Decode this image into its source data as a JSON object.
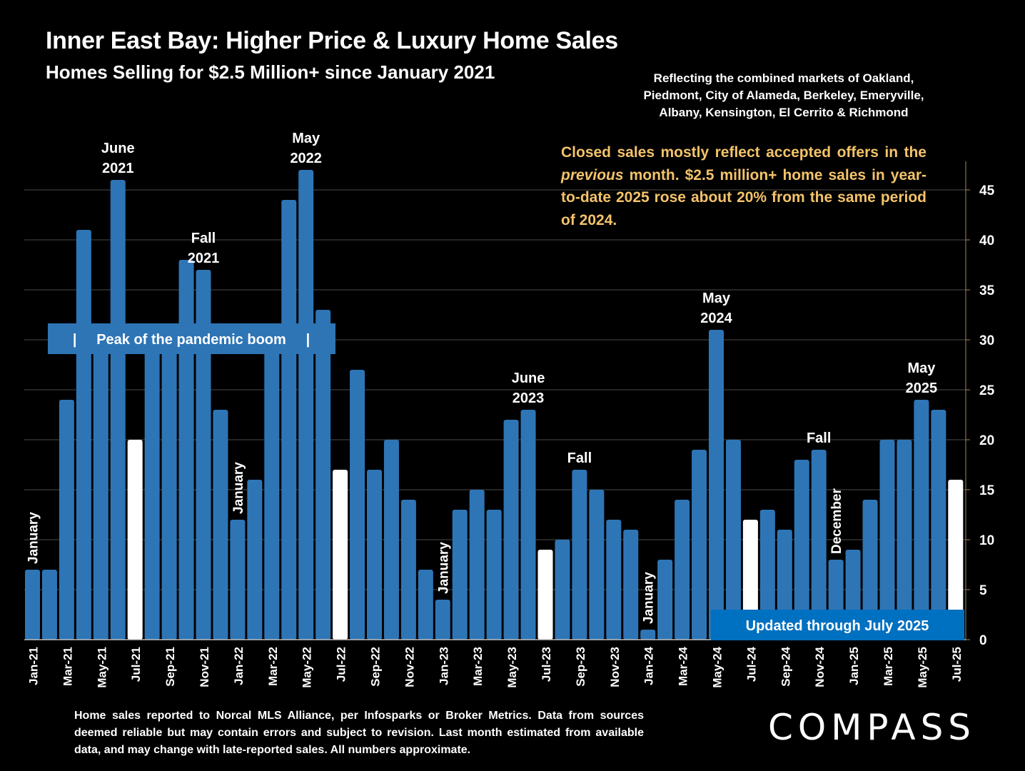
{
  "header": {
    "title": "Inner East Bay: Higher Price & Luxury Home Sales",
    "subtitle": "Homes Selling for $2.5 Million+ since January 2021",
    "region": "Reflecting the combined markets of Oakland, Piedmont, City of Alameda, Berkeley, Emeryville, Albany, Kensington, El Cerrito & Richmond"
  },
  "callout": {
    "part1": "Closed sales mostly reflect accepted offers in the ",
    "emphasis": "previous",
    "part2": " month. $2.5 million+ home sales in year-to-date 2025 rose about 20% from the same period of 2024."
  },
  "footnote": "Home sales reported to Norcal MLS Alliance, per Infosparks or Broker Metrics. Data from sources deemed reliable but may contain errors and subject to revision.  Last month estimated from available data, and may change with late-reported sales. All numbers approximate.",
  "logo": "COMPASS",
  "colors": {
    "bar": "#2e75b6",
    "highlight": "#ffffff",
    "background": "#000000",
    "callout": "#f4c36a",
    "badge": "#0070c0"
  },
  "chart_data": {
    "type": "bar",
    "categories": [
      "Jan-21",
      "Feb-21",
      "Mar-21",
      "Apr-21",
      "May-21",
      "Jun-21",
      "Jul-21",
      "Aug-21",
      "Sep-21",
      "Oct-21",
      "Nov-21",
      "Dec-21",
      "Jan-22",
      "Feb-22",
      "Mar-22",
      "Apr-22",
      "May-22",
      "Jun-22",
      "Jul-22",
      "Aug-22",
      "Sep-22",
      "Oct-22",
      "Nov-22",
      "Dec-22",
      "Jan-23",
      "Feb-23",
      "Mar-23",
      "Apr-23",
      "May-23",
      "Jun-23",
      "Jul-23",
      "Aug-23",
      "Sep-23",
      "Oct-23",
      "Nov-23",
      "Dec-23",
      "Jan-24",
      "Feb-24",
      "Mar-24",
      "Apr-24",
      "May-24",
      "Jun-24",
      "Jul-24",
      "Aug-24",
      "Sep-24",
      "Oct-24",
      "Nov-24",
      "Dec-24",
      "Jan-25",
      "Feb-25",
      "Mar-25",
      "Apr-25",
      "May-25",
      "Jun-25",
      "Jul-25"
    ],
    "values": [
      7,
      7,
      24,
      41,
      30,
      46,
      20,
      30,
      30,
      38,
      37,
      23,
      12,
      16,
      30,
      44,
      47,
      33,
      17,
      27,
      17,
      20,
      14,
      7,
      4,
      13,
      15,
      13,
      22,
      23,
      9,
      10,
      17,
      15,
      12,
      11,
      1,
      8,
      14,
      19,
      31,
      20,
      12,
      13,
      11,
      18,
      19,
      8,
      9,
      14,
      20,
      20,
      24,
      23,
      16
    ],
    "highlight_indices": [
      6,
      18,
      30,
      42,
      54
    ],
    "x_tick_labels": [
      "Jan-21",
      "Mar-21",
      "May-21",
      "Jul-21",
      "Sep-21",
      "Nov-21",
      "Jan-22",
      "Mar-22",
      "May-22",
      "Jul-22",
      "Sep-22",
      "Nov-22",
      "Jan-23",
      "Mar-23",
      "May-23",
      "Jul-23",
      "Sep-23",
      "Nov-23",
      "Jan-24",
      "Mar-24",
      "May-24",
      "Jul-24",
      "Sep-24",
      "Nov-24",
      "Jan-25",
      "Mar-25",
      "May-25",
      "Jul-25"
    ],
    "y_ticks": [
      0,
      5,
      10,
      15,
      20,
      25,
      30,
      35,
      40,
      45
    ],
    "ylim": [
      0,
      48
    ],
    "y_axis_side": "right",
    "grid": true,
    "annotations": [
      {
        "index": 0,
        "lines": [
          "January"
        ],
        "rotated": true
      },
      {
        "index": 5,
        "lines": [
          "June",
          "2021"
        ]
      },
      {
        "index": 10,
        "lines": [
          "Fall",
          "2021"
        ]
      },
      {
        "index": 12,
        "lines": [
          "January"
        ],
        "rotated": true
      },
      {
        "index": 16,
        "lines": [
          "May",
          "2022"
        ]
      },
      {
        "index": 24,
        "lines": [
          "January"
        ],
        "rotated": true
      },
      {
        "index": 29,
        "lines": [
          "June",
          "2023"
        ]
      },
      {
        "index": 32,
        "lines": [
          "Fall"
        ]
      },
      {
        "index": 36,
        "lines": [
          "January"
        ],
        "rotated": true
      },
      {
        "index": 40,
        "lines": [
          "May",
          "2024"
        ]
      },
      {
        "index": 46,
        "lines": [
          "Fall"
        ]
      },
      {
        "index": 47,
        "lines": [
          "December"
        ],
        "rotated": true
      },
      {
        "index": 52,
        "lines": [
          "May",
          "2025"
        ]
      }
    ],
    "peak_label": "|     Peak of the pandemic boom     |",
    "updated_label": "Updated through July 2025"
  }
}
